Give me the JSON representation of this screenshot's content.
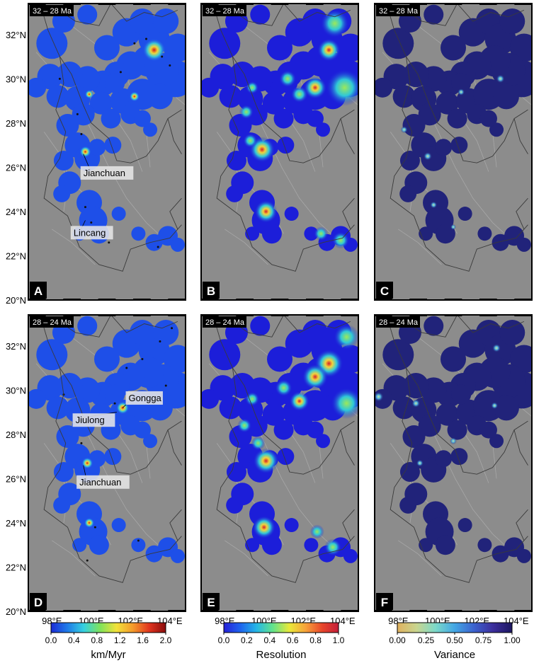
{
  "panels": [
    {
      "letter": "A",
      "period": "32 – 28 Ma",
      "field": "rate",
      "labels": [
        "Jianchuan",
        "Lincang"
      ]
    },
    {
      "letter": "B",
      "period": "32 – 28 Ma",
      "field": "resolution",
      "labels": []
    },
    {
      "letter": "C",
      "period": "32 – 28 Ma",
      "field": "variance",
      "labels": []
    },
    {
      "letter": "D",
      "period": "28 – 24 Ma",
      "field": "rate",
      "labels": [
        "Gongga",
        "Jiulong",
        "Jianchuan"
      ]
    },
    {
      "letter": "E",
      "period": "28 – 24 Ma",
      "field": "resolution",
      "labels": []
    },
    {
      "letter": "F",
      "period": "28 – 24 Ma",
      "field": "variance",
      "labels": []
    }
  ],
  "lat_ticks": [
    "20°N",
    "22°N",
    "24°N",
    "26°N",
    "28°N",
    "30°N",
    "32°N"
  ],
  "lon_ticks": [
    "98°E",
    "100°E",
    "102°E",
    "104°E"
  ],
  "colorbars": [
    {
      "title": "km/Myr",
      "ticks": [
        "0.0",
        "0.4",
        "0.8",
        "1.2",
        "1.6",
        "2.0"
      ],
      "colors": [
        "#1c2bd6",
        "#1f7be8",
        "#35d0e0",
        "#7fe35a",
        "#f2e23a",
        "#f59a2b",
        "#e0341e",
        "#8a0c0c"
      ]
    },
    {
      "title": "Resolution",
      "ticks": [
        "0.0",
        "0.2",
        "0.4",
        "0.6",
        "0.8",
        "1.0"
      ],
      "colors": [
        "#2620d8",
        "#1e63ee",
        "#25b7e6",
        "#63e38a",
        "#e9e93a",
        "#f7a23a",
        "#e8462b",
        "#c41e3a"
      ]
    },
    {
      "title": "Variance",
      "ticks": [
        "0.00",
        "0.25",
        "0.50",
        "0.75",
        "1.00"
      ],
      "colors": [
        "#e0b15e",
        "#c9d58f",
        "#7cd9c9",
        "#43a6e4",
        "#3c63cf",
        "#3c2e9c",
        "#1c1660"
      ]
    }
  ],
  "colors": {
    "background_gray": "#8c8c8c",
    "rate_blue": "#1e4fe8",
    "resolution_blue": "#1c1ed9",
    "variance_blue": "#21237a"
  }
}
